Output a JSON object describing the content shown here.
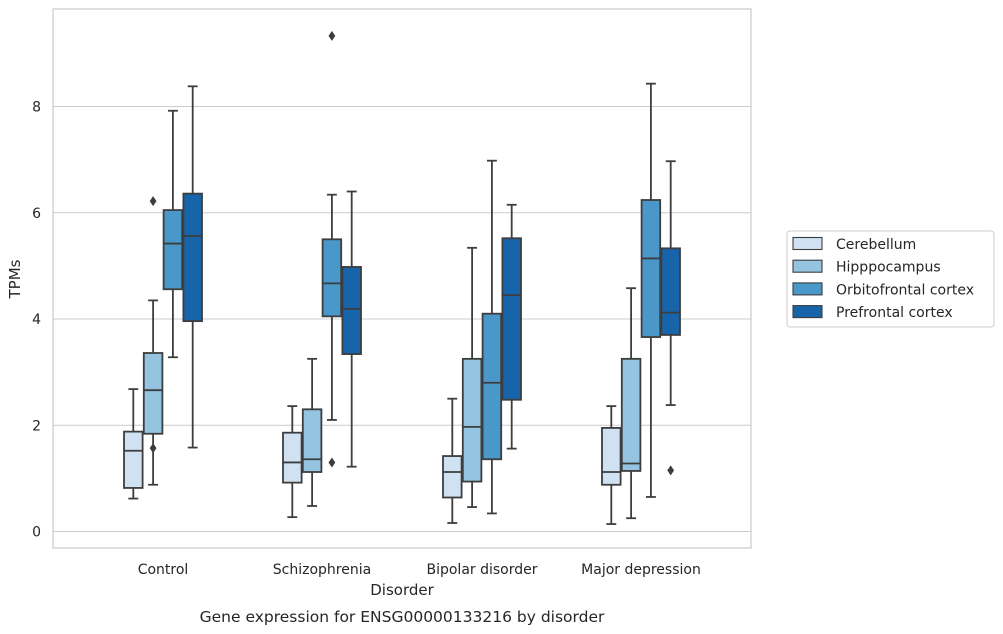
{
  "chart_data": {
    "type": "boxplot",
    "xlabel": "Disorder",
    "ylabel": "TPMs",
    "caption": "Gene expression for ENSG00000133216 by disorder",
    "ylim": [
      -0.3,
      9.8
    ],
    "yticks": [
      0,
      2,
      4,
      6,
      8
    ],
    "grid": true,
    "legend_position": "right",
    "categories": [
      "Control",
      "Schizophrenia",
      "Bipolar disorder",
      "Major depression"
    ],
    "series": [
      {
        "name": "Cerebellum",
        "color": "#d0e1f2",
        "boxes": [
          {
            "min": 0.62,
            "q1": 0.82,
            "median": 1.52,
            "q3": 1.88,
            "max": 2.68,
            "outliers": []
          },
          {
            "min": 0.27,
            "q1": 0.92,
            "median": 1.3,
            "q3": 1.86,
            "max": 2.36,
            "outliers": []
          },
          {
            "min": 0.16,
            "q1": 0.64,
            "median": 1.12,
            "q3": 1.42,
            "max": 2.5,
            "outliers": []
          },
          {
            "min": 0.14,
            "q1": 0.88,
            "median": 1.12,
            "q3": 1.95,
            "max": 2.36,
            "outliers": []
          }
        ]
      },
      {
        "name": "Hipppocampus",
        "color": "#94c4df",
        "boxes": [
          {
            "min": 0.88,
            "q1": 1.84,
            "median": 2.66,
            "q3": 3.36,
            "max": 4.35,
            "outliers": [
              6.22,
              1.57
            ]
          },
          {
            "min": 0.48,
            "q1": 1.12,
            "median": 1.36,
            "q3": 2.3,
            "max": 3.25,
            "outliers": []
          },
          {
            "min": 0.46,
            "q1": 0.94,
            "median": 1.97,
            "q3": 3.25,
            "max": 5.34,
            "outliers": []
          },
          {
            "min": 0.25,
            "q1": 1.14,
            "median": 1.28,
            "q3": 3.25,
            "max": 4.58,
            "outliers": []
          }
        ]
      },
      {
        "name": "Orbitofrontal cortex",
        "color": "#4a98c9",
        "boxes": [
          {
            "min": 3.28,
            "q1": 4.56,
            "median": 5.42,
            "q3": 6.05,
            "max": 7.92,
            "outliers": []
          },
          {
            "min": 2.1,
            "q1": 4.05,
            "median": 4.67,
            "q3": 5.5,
            "max": 6.34,
            "outliers": [
              9.33,
              1.3
            ]
          },
          {
            "min": 0.34,
            "q1": 1.36,
            "median": 2.8,
            "q3": 4.1,
            "max": 6.98,
            "outliers": []
          },
          {
            "min": 0.65,
            "q1": 3.66,
            "median": 5.14,
            "q3": 6.24,
            "max": 8.43,
            "outliers": []
          }
        ]
      },
      {
        "name": "Prefrontal cortex",
        "color": "#1764ab",
        "boxes": [
          {
            "min": 1.58,
            "q1": 3.96,
            "median": 5.56,
            "q3": 6.36,
            "max": 8.38,
            "outliers": []
          },
          {
            "min": 1.22,
            "q1": 3.34,
            "median": 4.19,
            "q3": 4.98,
            "max": 6.4,
            "outliers": []
          },
          {
            "min": 1.56,
            "q1": 2.48,
            "median": 4.45,
            "q3": 5.52,
            "max": 6.15,
            "outliers": []
          },
          {
            "min": 2.38,
            "q1": 3.7,
            "median": 4.12,
            "q3": 5.33,
            "max": 6.97,
            "outliers": [
              1.15
            ]
          }
        ]
      }
    ]
  }
}
